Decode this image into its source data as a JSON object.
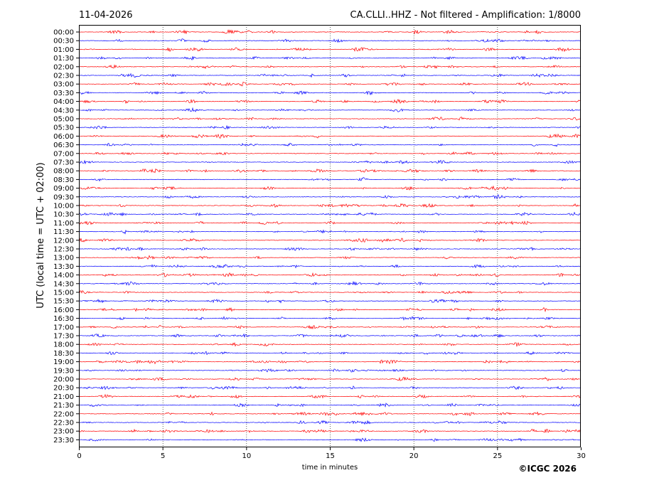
{
  "chart_data": {
    "type": "line",
    "title_left": "11-04-2026",
    "title_right": "CA.CLLI..HHZ - Not filtered - Amplification: 1/8000",
    "xlabel": "time in minutes",
    "ylabel": "UTC (local time = UTC + 02:00)",
    "xlim": [
      0,
      30
    ],
    "x_ticks": [
      "0",
      "5",
      "10",
      "15",
      "20",
      "25",
      "30"
    ],
    "x_tick_values": [
      0,
      5,
      10,
      15,
      20,
      25,
      30
    ],
    "grid": "vertical dotted at x ticks",
    "row_labels": [
      "00:00",
      "00:30",
      "01:00",
      "01:30",
      "02:00",
      "02:30",
      "03:00",
      "03:30",
      "04:00",
      "04:30",
      "05:00",
      "05:30",
      "06:00",
      "06:30",
      "07:00",
      "07:30",
      "08:00",
      "08:30",
      "09:00",
      "09:30",
      "10:00",
      "10:30",
      "11:00",
      "11:30",
      "12:00",
      "12:30",
      "13:00",
      "13:30",
      "14:00",
      "14:30",
      "15:00",
      "15:30",
      "16:00",
      "16:30",
      "17:00",
      "17:30",
      "18:00",
      "18:30",
      "19:00",
      "19:30",
      "20:00",
      "20:30",
      "21:00",
      "21:30",
      "22:00",
      "22:30",
      "23:00",
      "23:30"
    ],
    "series_colors": [
      "#ff0000",
      "#0000ff"
    ],
    "copyright": "©ICGC 2026"
  }
}
